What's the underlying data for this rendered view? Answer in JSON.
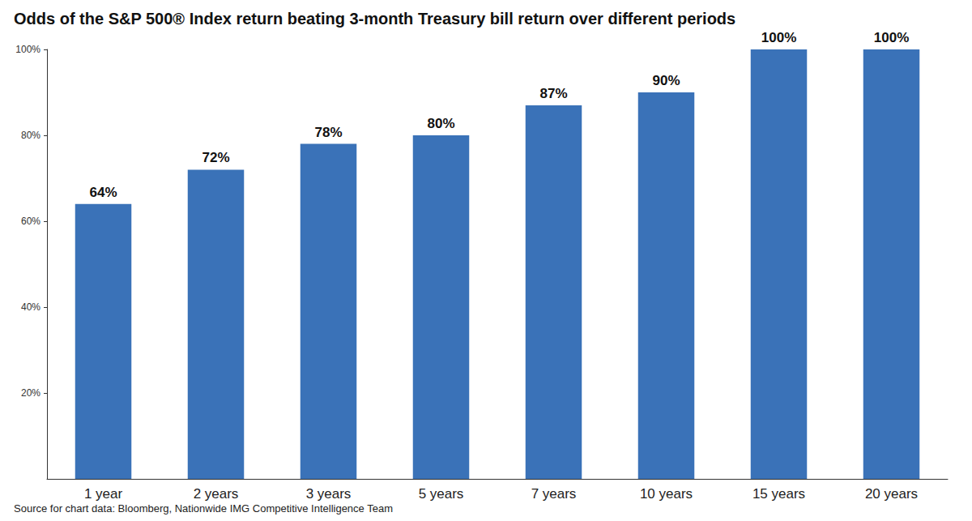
{
  "chart_data": {
    "type": "bar",
    "title": "Odds of the S&P 500® Index return beating 3-month Treasury bill return over different periods",
    "source": "Source for chart data: Bloomberg, Nationwide IMG Competitive Intelligence Team",
    "categories": [
      "1 year",
      "2 years",
      "3 years",
      "5 years",
      "7 years",
      "10 years",
      "15 years",
      "20 years"
    ],
    "values": [
      64,
      72,
      78,
      80,
      87,
      90,
      100,
      100
    ],
    "value_labels": [
      "64%",
      "72%",
      "78%",
      "80%",
      "87%",
      "90%",
      "100%",
      "100%"
    ],
    "color": "#3a72b8",
    "ylim": [
      0,
      100
    ],
    "yticks": [
      {
        "value": 20,
        "label": "20%"
      },
      {
        "value": 40,
        "label": "40%"
      },
      {
        "value": 60,
        "label": "60%"
      },
      {
        "value": 80,
        "label": "80%"
      },
      {
        "value": 100,
        "label": "100%"
      }
    ],
    "grid": false,
    "data_labels": true
  }
}
